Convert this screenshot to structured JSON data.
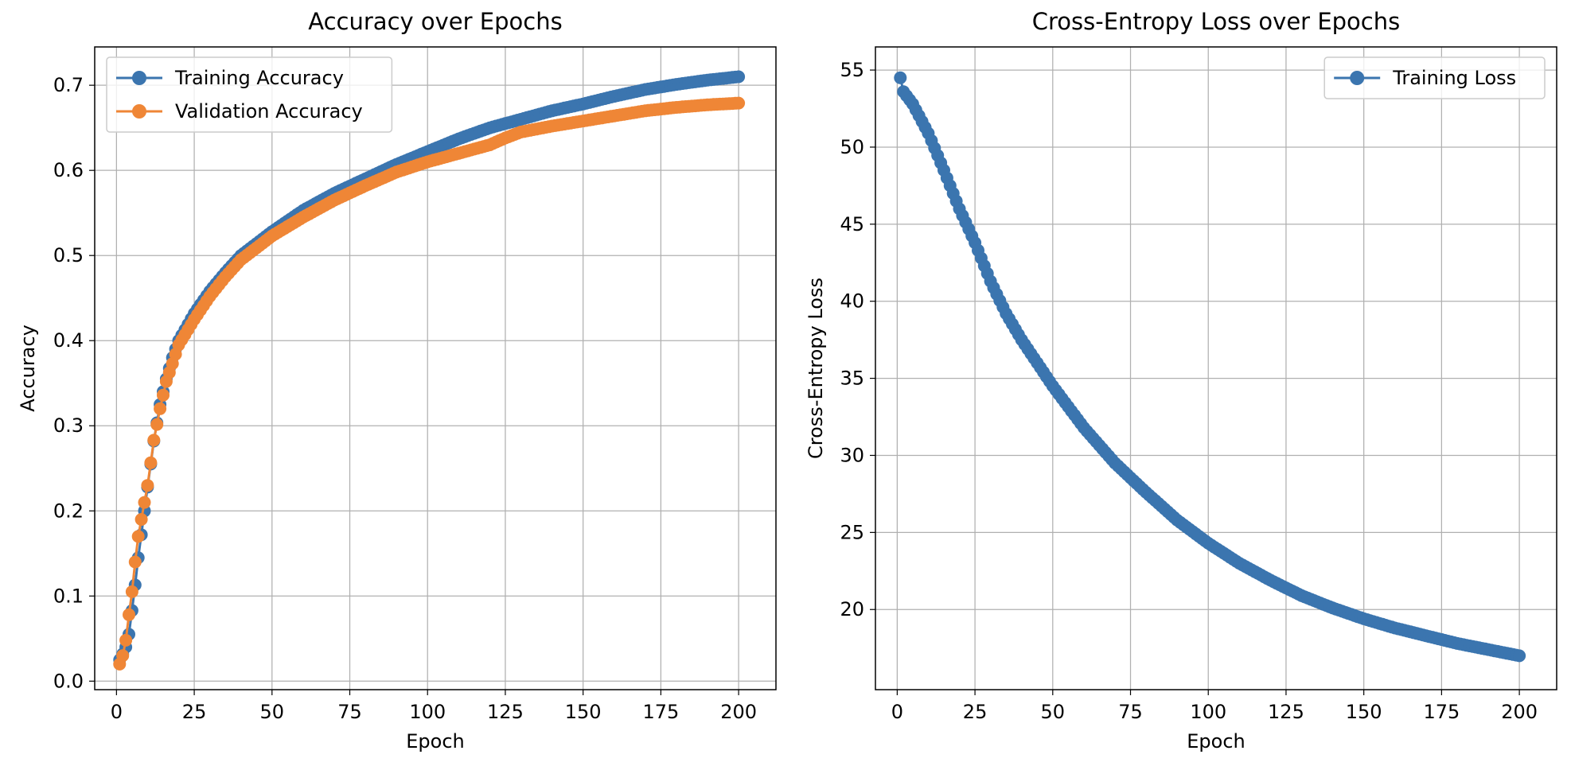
{
  "chart_data": [
    {
      "type": "line",
      "title": "Accuracy over Epochs",
      "xlabel": "Epoch",
      "ylabel": "Accuracy",
      "xlim": [
        -7,
        212
      ],
      "ylim": [
        -0.01,
        0.745
      ],
      "xticks": [
        0,
        25,
        50,
        75,
        100,
        125,
        150,
        175,
        200
      ],
      "yticks": [
        0.0,
        0.1,
        0.2,
        0.3,
        0.4,
        0.5,
        0.6,
        0.7
      ],
      "ytick_labels": [
        "0.0",
        "0.1",
        "0.2",
        "0.3",
        "0.4",
        "0.5",
        "0.6",
        "0.7"
      ],
      "grid": true,
      "legend_position": "top-left",
      "markers": true,
      "x_range": [
        1,
        200
      ],
      "series": [
        {
          "name": "Training Accuracy",
          "color": "#3b75af",
          "x": [
            1,
            2,
            3,
            4,
            5,
            6,
            7,
            8,
            9,
            10,
            12,
            14,
            16,
            18,
            20,
            25,
            30,
            35,
            40,
            50,
            60,
            70,
            80,
            90,
            100,
            110,
            120,
            130,
            140,
            150,
            160,
            170,
            180,
            190,
            200
          ],
          "y": [
            0.025,
            0.032,
            0.04,
            0.055,
            0.083,
            0.113,
            0.145,
            0.172,
            0.2,
            0.228,
            0.282,
            0.325,
            0.355,
            0.38,
            0.4,
            0.432,
            0.458,
            0.48,
            0.5,
            0.528,
            0.553,
            0.573,
            0.59,
            0.607,
            0.622,
            0.637,
            0.65,
            0.66,
            0.67,
            0.678,
            0.687,
            0.695,
            0.701,
            0.706,
            0.71
          ]
        },
        {
          "name": "Validation Accuracy",
          "color": "#ef8636",
          "x": [
            1,
            2,
            3,
            4,
            5,
            6,
            7,
            8,
            9,
            10,
            12,
            14,
            16,
            18,
            20,
            25,
            30,
            35,
            40,
            50,
            60,
            70,
            80,
            90,
            100,
            110,
            120,
            125,
            130,
            140,
            150,
            160,
            170,
            180,
            190,
            200
          ],
          "y": [
            0.02,
            0.03,
            0.048,
            0.078,
            0.105,
            0.14,
            0.17,
            0.19,
            0.21,
            0.23,
            0.283,
            0.32,
            0.352,
            0.373,
            0.395,
            0.425,
            0.452,
            0.475,
            0.495,
            0.523,
            0.545,
            0.565,
            0.582,
            0.598,
            0.61,
            0.62,
            0.63,
            0.638,
            0.645,
            0.652,
            0.658,
            0.664,
            0.67,
            0.674,
            0.677,
            0.679
          ]
        }
      ]
    },
    {
      "type": "line",
      "title": "Cross-Entropy Loss over Epochs",
      "xlabel": "Epoch",
      "ylabel": "Cross-Entropy Loss",
      "xlim": [
        -7,
        212
      ],
      "ylim": [
        14.8,
        56.5
      ],
      "xticks": [
        0,
        25,
        50,
        75,
        100,
        125,
        150,
        175,
        200
      ],
      "yticks": [
        20,
        25,
        30,
        35,
        40,
        45,
        50,
        55
      ],
      "ytick_labels": [
        "20",
        "25",
        "30",
        "35",
        "40",
        "45",
        "50",
        "55"
      ],
      "grid": true,
      "legend_position": "top-right",
      "markers": true,
      "x_range": [
        1,
        200
      ],
      "series": [
        {
          "name": "Training Loss",
          "color": "#3b75af",
          "x": [
            1,
            2,
            5,
            10,
            15,
            20,
            25,
            30,
            35,
            40,
            45,
            50,
            60,
            70,
            80,
            90,
            100,
            110,
            120,
            130,
            140,
            150,
            160,
            170,
            180,
            190,
            200
          ],
          "y": [
            54.5,
            53.6,
            52.8,
            50.9,
            48.5,
            46.0,
            43.8,
            41.3,
            39.2,
            37.5,
            36.0,
            34.5,
            31.8,
            29.5,
            27.6,
            25.8,
            24.3,
            23.0,
            21.9,
            20.9,
            20.1,
            19.4,
            18.8,
            18.3,
            17.8,
            17.4,
            17.0
          ]
        }
      ]
    }
  ]
}
